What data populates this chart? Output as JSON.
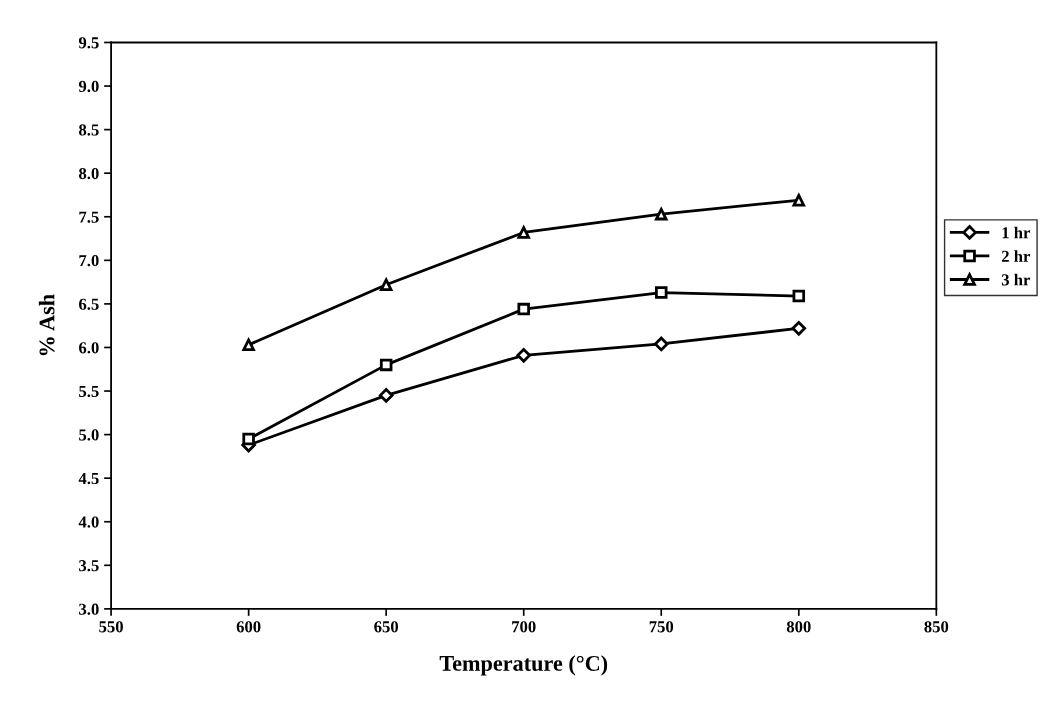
{
  "chart_data": {
    "type": "line",
    "xlabel": "Temperature (°C)",
    "ylabel": "% Ash",
    "x": [
      600,
      650,
      700,
      750,
      800
    ],
    "series": [
      {
        "name": "1 hr",
        "color": "#000000",
        "marker": "diamond",
        "values": [
          4.88,
          5.45,
          5.91,
          6.04,
          6.22
        ]
      },
      {
        "name": "2 hr",
        "color": "#000000",
        "marker": "square",
        "values": [
          4.95,
          5.8,
          6.44,
          6.63,
          6.59
        ]
      },
      {
        "name": "3 hr",
        "color": "#000000",
        "marker": "triangle",
        "values": [
          6.03,
          6.72,
          7.32,
          7.53,
          7.69
        ]
      }
    ],
    "xlim": [
      550,
      850
    ],
    "xticks": [
      550,
      600,
      650,
      700,
      750,
      800,
      850
    ],
    "ylim": [
      3.0,
      9.5
    ],
    "yticks": [
      {
        "value": 3.0,
        "label": "3.0"
      },
      {
        "value": 3.5,
        "label": "3.5"
      },
      {
        "value": 4.0,
        "label": "4.0"
      },
      {
        "value": 4.5,
        "label": "4.5"
      },
      {
        "value": 5.0,
        "label": "5.0"
      },
      {
        "value": 5.5,
        "label": "5.5"
      },
      {
        "value": 6.0,
        "label": "6.0"
      },
      {
        "value": 6.5,
        "label": "6.5"
      },
      {
        "value": 7.0,
        "label": "7.0"
      },
      {
        "value": 7.5,
        "label": "7.5"
      },
      {
        "value": 8.0,
        "label": "8.0"
      },
      {
        "value": 8.5,
        "label": "8.5"
      },
      {
        "value": 9.0,
        "label": "9.0"
      },
      {
        "value": 9.5,
        "label": "9.5"
      }
    ],
    "grid": false,
    "legend": "right",
    "line_style": "solid"
  }
}
